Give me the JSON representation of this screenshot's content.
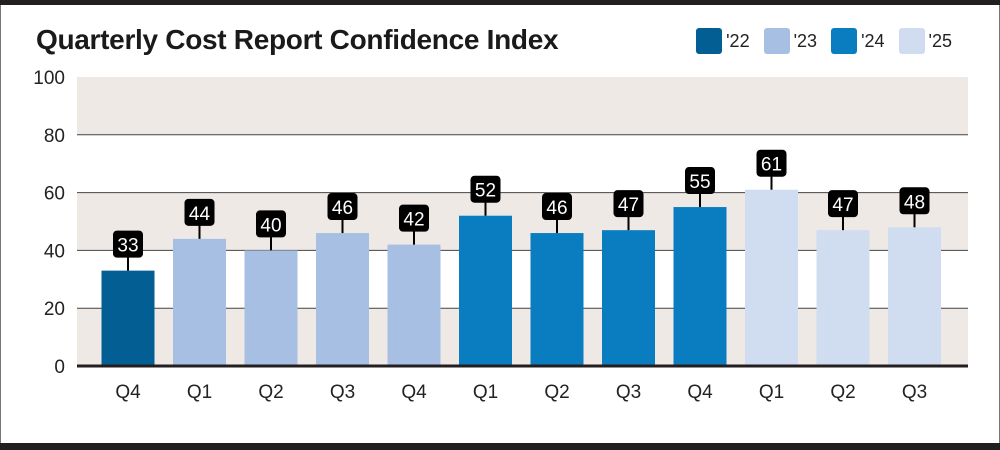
{
  "chart_data": {
    "type": "bar",
    "title": "Quarterly Cost Report Confidence Index",
    "categories": [
      "Q4",
      "Q1",
      "Q2",
      "Q3",
      "Q4",
      "Q1",
      "Q2",
      "Q3",
      "Q4",
      "Q1",
      "Q2",
      "Q3"
    ],
    "values": [
      33,
      44,
      40,
      46,
      42,
      52,
      46,
      47,
      55,
      61,
      47,
      48
    ],
    "groups": [
      "'22",
      "'23",
      "'23",
      "'23",
      "'23",
      "'24",
      "'24",
      "'24",
      "'24",
      "'25",
      "'25",
      "'25"
    ],
    "legend": [
      {
        "name": "'22",
        "color": "#035e94"
      },
      {
        "name": "'23",
        "color": "#a6bfe2"
      },
      {
        "name": "'24",
        "color": "#0a7dc0"
      },
      {
        "name": "'25",
        "color": "#d0dcef"
      }
    ],
    "legend_position": "top-right",
    "ylim": [
      0,
      100
    ],
    "yticks": [
      0,
      20,
      40,
      60,
      80,
      100
    ],
    "grid": true,
    "band_color": "#efe9e6",
    "label_box_color": "#000000"
  }
}
